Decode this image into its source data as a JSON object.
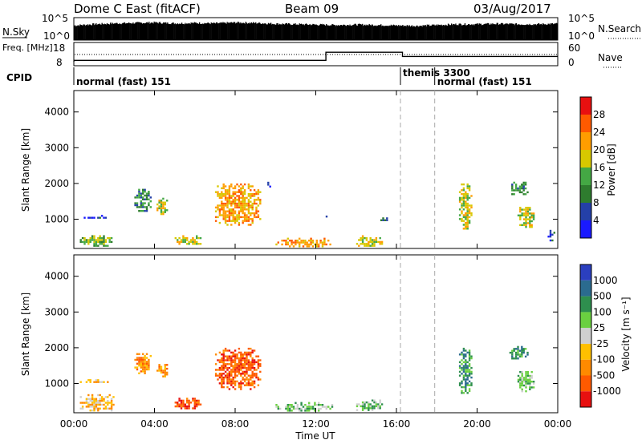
{
  "header": {
    "title": "Dome C East (fitACF)",
    "beam": "Beam 09",
    "date": "03/Aug/2017"
  },
  "chart_data": [
    {
      "type": "line",
      "panel": "sky-noise",
      "ylabel_left": "N.Sky",
      "ylabel_right": "N.Search",
      "yticks_left": [
        "10^5",
        "10^0"
      ],
      "yticks_right": [
        "10^5",
        "10^0"
      ],
      "x": [
        0,
        1,
        2,
        3,
        4,
        5,
        6,
        7,
        8,
        9,
        10,
        11,
        12,
        13,
        14,
        15,
        16,
        17,
        18,
        19,
        20,
        21,
        22,
        23,
        24
      ],
      "series": [
        {
          "values": [
            3.5,
            3.8,
            4.0,
            4.1,
            4.2,
            4.0,
            4.1,
            4.0,
            4.2,
            4.1,
            3.9,
            3.8,
            3.7,
            3.6,
            3.7,
            3.6,
            3.5,
            3.4,
            3.6,
            3.8,
            3.8,
            3.9,
            3.8,
            3.8,
            3.9
          ]
        }
      ]
    },
    {
      "type": "line",
      "panel": "frequency",
      "ylabel_left": "Freq. [MHz]",
      "ylabel_right": "Nave",
      "yticks_left": [
        "18",
        "8"
      ],
      "yticks_right": [
        "60",
        "0"
      ],
      "ylim": [
        8,
        18
      ],
      "x": [
        0,
        0.01,
        12.5,
        12.5,
        16.3,
        16.3,
        24
      ],
      "series": [
        {
          "values": [
            9.8,
            10.3,
            10.3,
            13.8,
            13.8,
            12.0,
            12.0
          ]
        }
      ]
    },
    {
      "type": "table",
      "panel": "cpid",
      "label": "CPID",
      "segments": [
        {
          "start": 0,
          "end": 16.2,
          "text": "normal (fast) 151"
        },
        {
          "start": 16.2,
          "end": 17.9,
          "text": "themis 3300"
        },
        {
          "start": 17.9,
          "end": 24,
          "text": "normal (fast) 151"
        }
      ]
    },
    {
      "type": "heatmap",
      "panel": "power",
      "ylabel": "Slant Range [km]",
      "yticks": [
        1000,
        2000,
        3000,
        4000
      ],
      "ylim": [
        180,
        4600
      ],
      "colorbar_label": "Power [dB]",
      "colorbar_ticks": [
        4,
        8,
        12,
        16,
        20,
        24,
        28
      ],
      "colorbar_colors": [
        "#1a1aff",
        "#2440a8",
        "#2e7c2e",
        "#44a844",
        "#d8c800",
        "#ff9d00",
        "#ff5a00",
        "#e81010"
      ],
      "blobs": [
        {
          "x0": 0.3,
          "x1": 1.8,
          "y0": 1050,
          "y1": 1120,
          "level": 1
        },
        {
          "x0": 0.3,
          "x1": 1.9,
          "y0": 250,
          "y1": 550,
          "level": 3
        },
        {
          "x0": 3.0,
          "x1": 3.8,
          "y0": 1250,
          "y1": 1850,
          "level": 2
        },
        {
          "x0": 4.1,
          "x1": 4.6,
          "y0": 1150,
          "y1": 1600,
          "level": 4
        },
        {
          "x0": 5.0,
          "x1": 6.3,
          "y0": 300,
          "y1": 550,
          "level": 4
        },
        {
          "x0": 7.0,
          "x1": 9.2,
          "y0": 850,
          "y1": 2000,
          "level": 5
        },
        {
          "x0": 9.5,
          "x1": 9.7,
          "y0": 1900,
          "y1": 2100,
          "level": 1
        },
        {
          "x0": 10.0,
          "x1": 12.8,
          "y0": 250,
          "y1": 480,
          "level": 5
        },
        {
          "x0": 12.3,
          "x1": 12.8,
          "y0": 1050,
          "y1": 1100,
          "level": 1
        },
        {
          "x0": 14.0,
          "x1": 15.3,
          "y0": 250,
          "y1": 550,
          "level": 4
        },
        {
          "x0": 15.2,
          "x1": 15.7,
          "y0": 950,
          "y1": 1050,
          "level": 1
        },
        {
          "x0": 19.1,
          "x1": 19.7,
          "y0": 750,
          "y1": 2000,
          "level": 4
        },
        {
          "x0": 21.6,
          "x1": 22.5,
          "y0": 1700,
          "y1": 2050,
          "level": 2
        },
        {
          "x0": 22.0,
          "x1": 22.8,
          "y0": 800,
          "y1": 1400,
          "level": 4
        },
        {
          "x0": 23.5,
          "x1": 23.8,
          "y0": 300,
          "y1": 700,
          "level": 1
        }
      ]
    },
    {
      "type": "heatmap",
      "panel": "velocity",
      "ylabel": "Slant Range [km]",
      "xlabel": "Time UT",
      "xticks": [
        "00:00",
        "04:00",
        "08:00",
        "12:00",
        "16:00",
        "20:00",
        "00:00"
      ],
      "yticks": [
        1000,
        2000,
        3000,
        4000
      ],
      "ylim": [
        180,
        4600
      ],
      "colorbar_label": "Velocity [m s⁻¹]",
      "colorbar_ticks": [
        "1000",
        "500",
        "100",
        "25",
        "-25",
        "-100",
        "-500",
        "-1000"
      ],
      "colorbar_colors": [
        "#2b3fbf",
        "#2b6b8f",
        "#2e8f4e",
        "#6ad040",
        "#cfcfcf",
        "#ffc000",
        "#ff8a00",
        "#ff5a00",
        "#e81010"
      ],
      "blobs": [
        {
          "x0": 0.3,
          "x1": 1.8,
          "y0": 1050,
          "y1": 1120,
          "level": 5
        },
        {
          "x0": 0.3,
          "x1": 2.0,
          "y0": 250,
          "y1": 700,
          "level": 5
        },
        {
          "x0": 3.0,
          "x1": 3.8,
          "y0": 1250,
          "y1": 1850,
          "level": 6
        },
        {
          "x0": 4.1,
          "x1": 4.6,
          "y0": 1150,
          "y1": 1600,
          "level": 6
        },
        {
          "x0": 5.0,
          "x1": 6.3,
          "y0": 300,
          "y1": 600,
          "level": 7
        },
        {
          "x0": 7.0,
          "x1": 9.2,
          "y0": 850,
          "y1": 2000,
          "level": 7
        },
        {
          "x0": 10.0,
          "x1": 12.8,
          "y0": 250,
          "y1": 480,
          "level": 3
        },
        {
          "x0": 14.0,
          "x1": 15.3,
          "y0": 250,
          "y1": 550,
          "level": 3
        },
        {
          "x0": 19.1,
          "x1": 19.7,
          "y0": 750,
          "y1": 2000,
          "level": 2
        },
        {
          "x0": 21.6,
          "x1": 22.5,
          "y0": 1700,
          "y1": 2050,
          "level": 2
        },
        {
          "x0": 22.0,
          "x1": 22.8,
          "y0": 800,
          "y1": 1400,
          "level": 3
        }
      ]
    }
  ]
}
